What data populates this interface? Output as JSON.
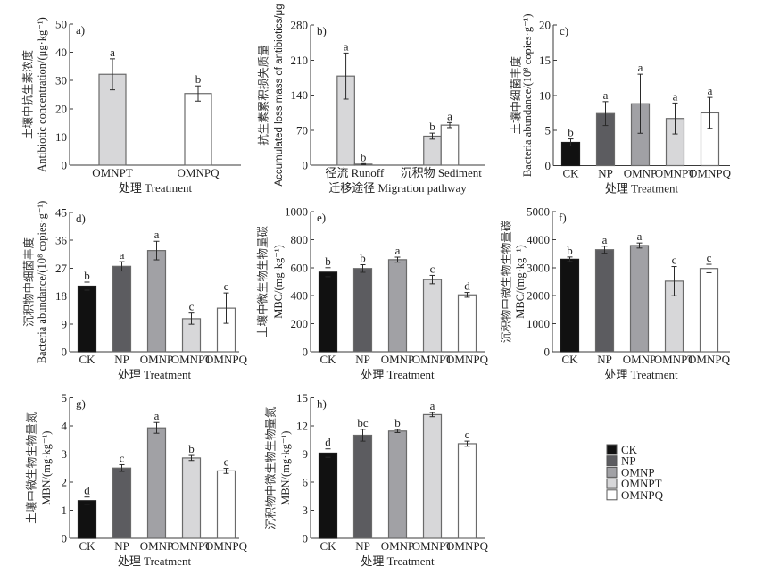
{
  "treatment_colors": {
    "CK": "#111111",
    "NP": "#5c5c60",
    "OMNP": "#a1a1a5",
    "OMNPT": "#d7d7d9",
    "OMNPQ": "#ffffff"
  },
  "bar_outline": "#6a6a6a",
  "chart_data": [
    {
      "panel": "a)",
      "type": "bar",
      "categories": [
        "OMNPT",
        "OMNPQ"
      ],
      "values": [
        32.2,
        25.4
      ],
      "errors": [
        5.5,
        2.7
      ],
      "letters": [
        "a",
        "b"
      ],
      "ylabel_cn": "土壤中抗生素浓度",
      "ylabel_en": "Antibiotic concentration/(μg·kg⁻¹)",
      "xlabel": "处理 Treatment",
      "ylim": [
        0,
        50
      ],
      "yticks": [
        0,
        10,
        20,
        30,
        40,
        50
      ]
    },
    {
      "panel": "b)",
      "type": "bar",
      "grouped": true,
      "categories": [
        "径流 Runoff",
        "沉积物 Sediment"
      ],
      "series": [
        {
          "name": "OMNPT",
          "values": [
            178,
            58
          ],
          "errors": [
            46,
            6
          ],
          "letters": [
            "a",
            "b"
          ]
        },
        {
          "name": "OMNPQ",
          "values": [
            2,
            80
          ],
          "errors": [
            1,
            5
          ],
          "letters": [
            "b",
            "a"
          ]
        }
      ],
      "ylabel_cn": "抗生素累积损失质量",
      "ylabel_en": "Accumulated loss mass of antibiotics/μg",
      "xlabel": "迁移途径 Migration pathway",
      "ylim": [
        0,
        280
      ],
      "yticks": [
        0,
        70,
        140,
        210,
        280
      ]
    },
    {
      "panel": "c)",
      "type": "bar",
      "categories": [
        "CK",
        "NP",
        "OMNP",
        "OMNPT",
        "OMNPQ"
      ],
      "values": [
        3.3,
        7.4,
        8.8,
        6.7,
        7.5
      ],
      "errors": [
        0.5,
        1.7,
        4.2,
        2.2,
        2.2
      ],
      "letters": [
        "b",
        "a",
        "a",
        "a",
        "a"
      ],
      "ylabel_cn": "土壤中细菌丰度",
      "ylabel_en": "Bacteria abundance/(10⁸ copies·g⁻¹)",
      "xlabel": "处理 Treatment",
      "ylim": [
        0,
        20
      ],
      "yticks": [
        0,
        5,
        10,
        15,
        20
      ]
    },
    {
      "panel": "d)",
      "type": "bar",
      "categories": [
        "CK",
        "NP",
        "OMNP",
        "OMNPT",
        "OMNPQ"
      ],
      "values": [
        21.2,
        27.6,
        32.7,
        10.7,
        14.1
      ],
      "errors": [
        1.3,
        1.5,
        3.0,
        1.8,
        4.9
      ],
      "letters": [
        "b",
        "a",
        "a",
        "c",
        "c"
      ],
      "ylabel_cn": "沉积物中细菌丰度",
      "ylabel_en": "Bacteria abundance/(10⁸ copies·g⁻¹)",
      "xlabel": "处理 Treatment",
      "ylim": [
        0,
        45
      ],
      "yticks": [
        0,
        9,
        18,
        27,
        36,
        45
      ]
    },
    {
      "panel": "e)",
      "type": "bar",
      "categories": [
        "CK",
        "NP",
        "OMNP",
        "OMNPT",
        "OMNPQ"
      ],
      "values": [
        568,
        594,
        657,
        515,
        406
      ],
      "errors": [
        32,
        27,
        18,
        30,
        17
      ],
      "letters": [
        "b",
        "b",
        "a",
        "c",
        "d"
      ],
      "ylabel_cn": "土壤中微生物生物量碳",
      "ylabel_en": "MBC/(mg·kg⁻¹)",
      "xlabel": "处理 Treatment",
      "ylim": [
        0,
        1000
      ],
      "yticks": [
        0,
        200,
        400,
        600,
        800,
        1000
      ]
    },
    {
      "panel": "f)",
      "type": "bar",
      "categories": [
        "CK",
        "NP",
        "OMNP",
        "OMNPT",
        "OMNPQ"
      ],
      "values": [
        3300,
        3640,
        3790,
        2520,
        2970
      ],
      "errors": [
        80,
        125,
        90,
        520,
        150
      ],
      "letters": [
        "b",
        "a",
        "a",
        "c",
        "c"
      ],
      "ylabel_cn": "沉积物中微生物生物量碳",
      "ylabel_en": "MBC/(mg·kg⁻¹)",
      "xlabel": "处理 Treatment",
      "ylim": [
        0,
        5000
      ],
      "yticks": [
        0,
        1000,
        2000,
        3000,
        4000,
        5000
      ]
    },
    {
      "panel": "g)",
      "type": "bar",
      "categories": [
        "CK",
        "NP",
        "OMNP",
        "OMNPT",
        "OMNPQ"
      ],
      "values": [
        1.34,
        2.5,
        3.93,
        2.86,
        2.4
      ],
      "errors": [
        0.13,
        0.12,
        0.19,
        0.09,
        0.09
      ],
      "letters": [
        "d",
        "c",
        "a",
        "b",
        "c"
      ],
      "ylabel_cn": "土壤中微生物生物量氮",
      "ylabel_en": "MBN/(mg·kg⁻¹)",
      "xlabel": "处理 Treatment",
      "ylim": [
        0,
        5
      ],
      "yticks": [
        0,
        1,
        2,
        3,
        4,
        5
      ]
    },
    {
      "panel": "h)",
      "type": "bar",
      "categories": [
        "CK",
        "NP",
        "OMNP",
        "OMNPT",
        "OMNPQ"
      ],
      "values": [
        9.1,
        11.0,
        11.45,
        13.2,
        10.1
      ],
      "errors": [
        0.45,
        0.63,
        0.16,
        0.22,
        0.27
      ],
      "letters": [
        "d",
        "bc",
        "b",
        "a",
        "c"
      ],
      "ylabel_cn": "沉积物中微生物生物量氮",
      "ylabel_en": "MBN/(mg·kg⁻¹)",
      "xlabel": "处理 Treatment",
      "ylim": [
        0,
        15
      ],
      "yticks": [
        0,
        3,
        6,
        9,
        12,
        15
      ]
    }
  ],
  "legend": {
    "position": "bottom-right",
    "items": [
      {
        "label": "CK",
        "color": "#111111"
      },
      {
        "label": "NP",
        "color": "#5c5c60"
      },
      {
        "label": "OMNP",
        "color": "#a1a1a5"
      },
      {
        "label": "OMNPT",
        "color": "#d7d7d9"
      },
      {
        "label": "OMNPQ",
        "color": "#ffffff"
      }
    ]
  }
}
